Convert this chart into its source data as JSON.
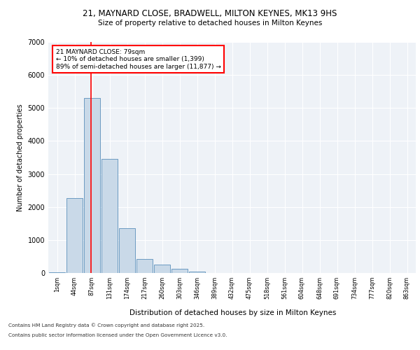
{
  "title_line1": "21, MAYNARD CLOSE, BRADWELL, MILTON KEYNES, MK13 9HS",
  "title_line2": "Size of property relative to detached houses in Milton Keynes",
  "xlabel": "Distribution of detached houses by size in Milton Keynes",
  "ylabel": "Number of detached properties",
  "categories": [
    "1sqm",
    "44sqm",
    "87sqm",
    "131sqm",
    "174sqm",
    "217sqm",
    "260sqm",
    "303sqm",
    "346sqm",
    "389sqm",
    "432sqm",
    "475sqm",
    "518sqm",
    "561sqm",
    "604sqm",
    "648sqm",
    "691sqm",
    "734sqm",
    "777sqm",
    "820sqm",
    "863sqm"
  ],
  "bar_values": [
    30,
    2280,
    5300,
    3450,
    1350,
    430,
    250,
    130,
    35,
    10,
    5,
    2,
    1,
    0,
    0,
    0,
    0,
    0,
    0,
    0,
    0
  ],
  "bar_color": "#c9d9e8",
  "bar_edge_color": "#5a8fbb",
  "property_line_x": 1.93,
  "property_line_color": "red",
  "annotation_text": "21 MAYNARD CLOSE: 79sqm\n← 10% of detached houses are smaller (1,399)\n89% of semi-detached houses are larger (11,877) →",
  "annotation_box_color": "white",
  "annotation_box_edge_color": "red",
  "ylim": [
    0,
    7000
  ],
  "yticks": [
    0,
    1000,
    2000,
    3000,
    4000,
    5000,
    6000,
    7000
  ],
  "footer_line1": "Contains HM Land Registry data © Crown copyright and database right 2025.",
  "footer_line2": "Contains public sector information licensed under the Open Government Licence v3.0.",
  "background_color": "#eef2f7",
  "grid_color": "white",
  "fig_background_color": "white"
}
